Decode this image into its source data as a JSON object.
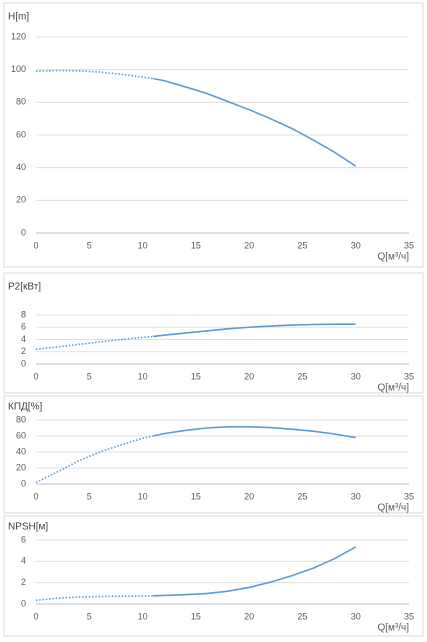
{
  "chart_data": [
    {
      "type": "line",
      "title": "H[m]",
      "x_label": "Q[м³/ч]",
      "color": "#5b9bd5",
      "dotted_until_x": 11,
      "grid": true,
      "x": [
        0,
        2,
        4,
        6,
        8,
        10,
        11,
        12,
        14,
        16,
        18,
        20,
        22,
        24,
        26,
        28,
        30
      ],
      "values": [
        99,
        99.5,
        99.3,
        98.5,
        97.2,
        95.5,
        94.5,
        93.3,
        89.5,
        85.5,
        80.5,
        75.5,
        70,
        64,
        57,
        49.5,
        41
      ],
      "xlim": [
        0,
        35
      ],
      "xticks": [
        0,
        5,
        10,
        15,
        20,
        25,
        30,
        35
      ],
      "ylim": [
        0,
        120
      ],
      "yticks": [
        0,
        20,
        40,
        60,
        80,
        100,
        120
      ]
    },
    {
      "type": "line",
      "title": "P2[кВт]",
      "x_label": "Q[м³/ч]",
      "color": "#5b9bd5",
      "dotted_until_x": 11,
      "grid": true,
      "x": [
        0,
        2,
        4,
        6,
        8,
        10,
        11,
        12,
        14,
        16,
        18,
        20,
        22,
        24,
        26,
        28,
        30
      ],
      "values": [
        2.4,
        2.8,
        3.2,
        3.6,
        4.0,
        4.35,
        4.5,
        4.7,
        5.05,
        5.4,
        5.75,
        6.0,
        6.2,
        6.35,
        6.45,
        6.5,
        6.5
      ],
      "xlim": [
        0,
        35
      ],
      "xticks": [
        0,
        5,
        10,
        15,
        20,
        25,
        30,
        35
      ],
      "ylim": [
        0,
        8
      ],
      "yticks": [
        0,
        2,
        4,
        6,
        8
      ]
    },
    {
      "type": "line",
      "title": "КПД[%]",
      "x_label": "Q[м³/ч]",
      "color": "#5b9bd5",
      "dotted_until_x": 11,
      "grid": true,
      "x": [
        0,
        2,
        4,
        6,
        8,
        10,
        11,
        12,
        14,
        16,
        18,
        20,
        22,
        24,
        26,
        28,
        30
      ],
      "values": [
        2,
        15,
        29,
        40,
        49,
        57,
        60,
        63,
        67,
        70,
        71.5,
        71.5,
        70.5,
        68.5,
        66,
        62.5,
        58
      ],
      "xlim": [
        0,
        35
      ],
      "xticks": [
        0,
        5,
        10,
        15,
        20,
        25,
        30,
        35
      ],
      "ylim": [
        0,
        80
      ],
      "yticks": [
        0,
        20,
        40,
        60,
        80
      ]
    },
    {
      "type": "line",
      "title": "NPSH[м]",
      "x_label": "Q[м³/ч]",
      "color": "#5b9bd5",
      "dotted_until_x": 11,
      "grid": true,
      "x": [
        0,
        2,
        4,
        6,
        8,
        10,
        11,
        12,
        14,
        16,
        18,
        20,
        22,
        24,
        26,
        28,
        30
      ],
      "values": [
        0.35,
        0.55,
        0.65,
        0.7,
        0.73,
        0.75,
        0.77,
        0.8,
        0.87,
        0.98,
        1.2,
        1.55,
        2.05,
        2.65,
        3.35,
        4.25,
        5.35
      ],
      "xlim": [
        0,
        35
      ],
      "xticks": [
        0,
        5,
        10,
        15,
        20,
        25,
        30,
        35
      ],
      "ylim": [
        0,
        6
      ],
      "yticks": [
        0,
        2,
        4,
        6
      ]
    }
  ]
}
